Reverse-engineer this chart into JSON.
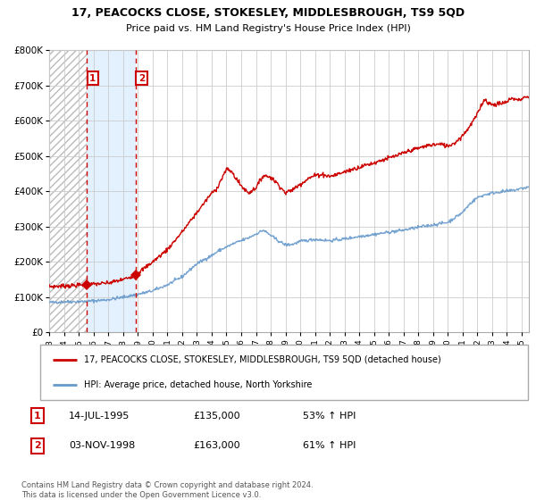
{
  "title": "17, PEACOCKS CLOSE, STOKESLEY, MIDDLESBROUGH, TS9 5QD",
  "subtitle": "Price paid vs. HM Land Registry's House Price Index (HPI)",
  "legend_line1": "17, PEACOCKS CLOSE, STOKESLEY, MIDDLESBROUGH, TS9 5QD (detached house)",
  "legend_line2": "HPI: Average price, detached house, North Yorkshire",
  "transaction1_date": "14-JUL-1995",
  "transaction1_price": 135000,
  "transaction1_hpi": "53% ↑ HPI",
  "transaction2_date": "03-NOV-1998",
  "transaction2_price": 163000,
  "transaction2_hpi": "61% ↑ HPI",
  "footnote": "Contains HM Land Registry data © Crown copyright and database right 2024.\nThis data is licensed under the Open Government Licence v3.0.",
  "red_color": "#cc0000",
  "blue_color": "#6699cc",
  "transaction1_x": 1995.54,
  "transaction2_x": 1998.84,
  "ylim_max": 800000,
  "xmin": 1993,
  "xmax": 2025.5
}
